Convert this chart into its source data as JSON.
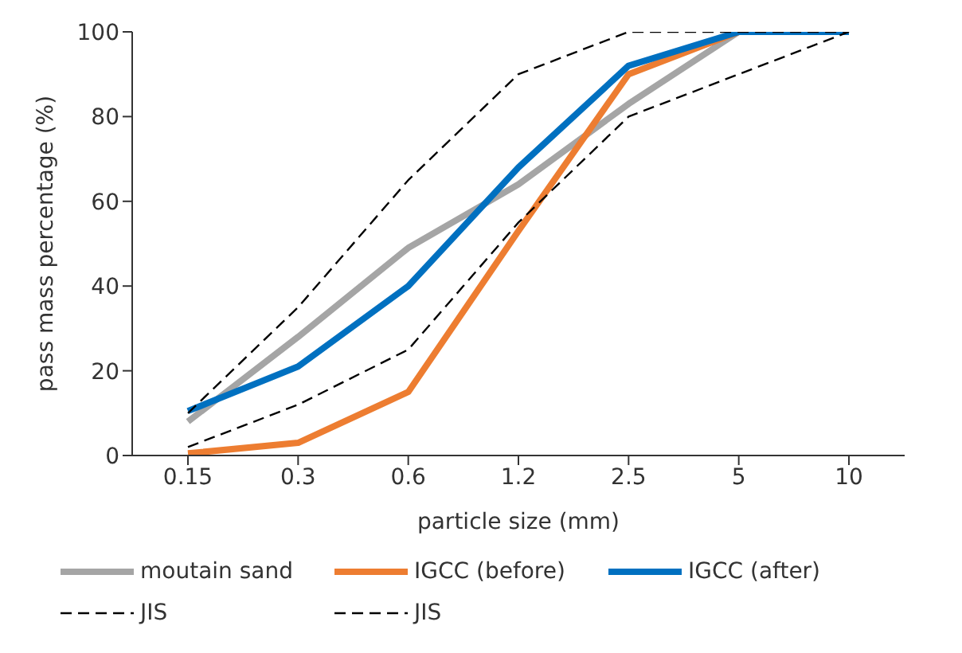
{
  "chart_data": {
    "type": "line",
    "xlabel": "particle size (mm)",
    "ylabel": "pass mass percentage (%)",
    "categories": [
      "0.15",
      "0.3",
      "0.6",
      "1.2",
      "2.5",
      "5",
      "10"
    ],
    "ylim": [
      0,
      100
    ],
    "yticks": [
      0,
      20,
      40,
      60,
      80,
      100
    ],
    "grid": false,
    "legend": "bottom",
    "marker": "none",
    "series": [
      {
        "name": "moutain sand",
        "color": "#a5a5a5",
        "values": [
          8,
          28,
          49,
          64,
          83,
          100,
          100
        ]
      },
      {
        "name": "IGCC (before)",
        "color": "#ed7d31",
        "values": [
          0.5,
          3,
          15,
          53,
          90,
          100,
          100
        ]
      },
      {
        "name": "IGCC (after)",
        "color": "#0070c0",
        "values": [
          10.5,
          21,
          40,
          68,
          92,
          100,
          100
        ]
      },
      {
        "name": "JIS",
        "color": "#000000",
        "line_style": "dashed",
        "values": [
          10,
          35,
          65,
          90,
          100,
          100,
          100
        ]
      },
      {
        "name": "JIS",
        "color": "#000000",
        "line_style": "dashed",
        "values": [
          2,
          12,
          25,
          55,
          80,
          90,
          100
        ]
      }
    ]
  }
}
